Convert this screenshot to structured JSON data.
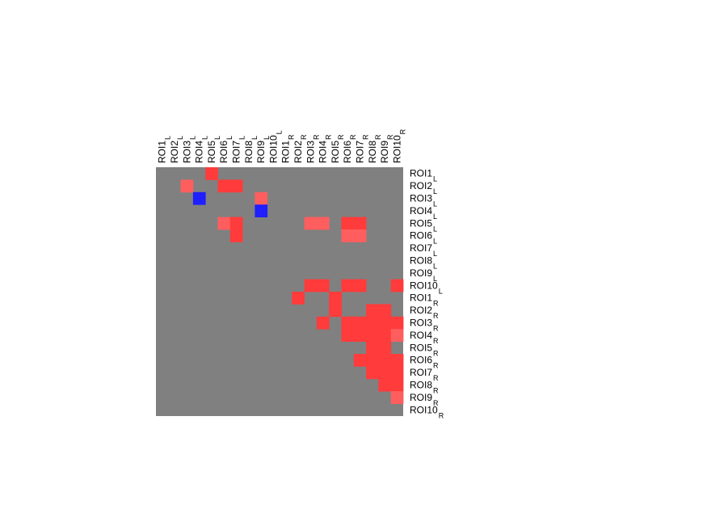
{
  "chart_data": {
    "type": "heatmap",
    "title": "",
    "xlabel": "",
    "ylabel": "",
    "columns": [
      {
        "base": "ROI1",
        "sub": "L"
      },
      {
        "base": "ROI2",
        "sub": "L"
      },
      {
        "base": "ROI3",
        "sub": "L"
      },
      {
        "base": "ROI4",
        "sub": "L"
      },
      {
        "base": "ROI5",
        "sub": "L"
      },
      {
        "base": "ROI6",
        "sub": "L"
      },
      {
        "base": "ROI7",
        "sub": "L"
      },
      {
        "base": "ROI8",
        "sub": "L"
      },
      {
        "base": "ROI9",
        "sub": "L"
      },
      {
        "base": "ROI10",
        "sub": "L"
      },
      {
        "base": "ROI1",
        "sub": "R"
      },
      {
        "base": "ROI2",
        "sub": "R"
      },
      {
        "base": "ROI3",
        "sub": "R"
      },
      {
        "base": "ROI4",
        "sub": "R"
      },
      {
        "base": "ROI5",
        "sub": "R"
      },
      {
        "base": "ROI6",
        "sub": "R"
      },
      {
        "base": "ROI7",
        "sub": "R"
      },
      {
        "base": "ROI8",
        "sub": "R"
      },
      {
        "base": "ROI9",
        "sub": "R"
      },
      {
        "base": "ROI10",
        "sub": "R"
      }
    ],
    "rows": [
      {
        "base": "ROI1",
        "sub": "L"
      },
      {
        "base": "ROI2",
        "sub": "L"
      },
      {
        "base": "ROI3",
        "sub": "L"
      },
      {
        "base": "ROI4",
        "sub": "L"
      },
      {
        "base": "ROI5",
        "sub": "L"
      },
      {
        "base": "ROI6",
        "sub": "L"
      },
      {
        "base": "ROI7",
        "sub": "L"
      },
      {
        "base": "ROI8",
        "sub": "L"
      },
      {
        "base": "ROI9",
        "sub": "L"
      },
      {
        "base": "ROI10",
        "sub": "L"
      },
      {
        "base": "ROI1",
        "sub": "R"
      },
      {
        "base": "ROI2",
        "sub": "R"
      },
      {
        "base": "ROI3",
        "sub": "R"
      },
      {
        "base": "ROI4",
        "sub": "R"
      },
      {
        "base": "ROI5",
        "sub": "R"
      },
      {
        "base": "ROI6",
        "sub": "R"
      },
      {
        "base": "ROI7",
        "sub": "R"
      },
      {
        "base": "ROI8",
        "sub": "R"
      },
      {
        "base": "ROI9",
        "sub": "R"
      },
      {
        "base": "ROI10",
        "sub": "R"
      }
    ],
    "values": [
      [
        0,
        0,
        0,
        0,
        1,
        0,
        0,
        0,
        0,
        0,
        0,
        0,
        0,
        0,
        0,
        0,
        0,
        0,
        0,
        0
      ],
      [
        0,
        0,
        0.7,
        0,
        0,
        1,
        1,
        0,
        0,
        0,
        0,
        0,
        0,
        0,
        0,
        0,
        0,
        0,
        0,
        0
      ],
      [
        0,
        0,
        0,
        -1,
        0,
        0,
        0,
        0,
        0.7,
        0,
        0,
        0,
        0,
        0,
        0,
        0,
        0,
        0,
        0,
        0
      ],
      [
        0,
        0,
        0,
        0,
        0,
        0,
        0,
        0,
        -1,
        0,
        0,
        0,
        0,
        0,
        0,
        0,
        0,
        0,
        0,
        0
      ],
      [
        0,
        0,
        0,
        0,
        0,
        0.7,
        1,
        0,
        0,
        0,
        0,
        0,
        0.7,
        0.7,
        0,
        1,
        1,
        0,
        0,
        0
      ],
      [
        0,
        0,
        0,
        0,
        0,
        0,
        1,
        0,
        0,
        0,
        0,
        0,
        0,
        0,
        0,
        0.7,
        0.7,
        0,
        0,
        0
      ],
      [
        0,
        0,
        0,
        0,
        0,
        0,
        0,
        0,
        0,
        0,
        0,
        0,
        0,
        0,
        0,
        0,
        0,
        0,
        0,
        0
      ],
      [
        0,
        0,
        0,
        0,
        0,
        0,
        0,
        0,
        0,
        0,
        0,
        0,
        0,
        0,
        0,
        0,
        0,
        0,
        0,
        0
      ],
      [
        0,
        0,
        0,
        0,
        0,
        0,
        0,
        0,
        0,
        0,
        0,
        0,
        0,
        0,
        0,
        0,
        0,
        0,
        0,
        0
      ],
      [
        0,
        0,
        0,
        0,
        0,
        0,
        0,
        0,
        0,
        0,
        0,
        0,
        1,
        1,
        0,
        1,
        1,
        0,
        0,
        1
      ],
      [
        0,
        0,
        0,
        0,
        0,
        0,
        0,
        0,
        0,
        0,
        0,
        1,
        0,
        0,
        1,
        0,
        0,
        0,
        0,
        0
      ],
      [
        0,
        0,
        0,
        0,
        0,
        0,
        0,
        0,
        0,
        0,
        0,
        0,
        0,
        0,
        1,
        0,
        0,
        1,
        1,
        0
      ],
      [
        0,
        0,
        0,
        0,
        0,
        0,
        0,
        0,
        0,
        0,
        0,
        0,
        0,
        1,
        0,
        1,
        1,
        1,
        1,
        1
      ],
      [
        0,
        0,
        0,
        0,
        0,
        0,
        0,
        0,
        0,
        0,
        0,
        0,
        0,
        0,
        0,
        1,
        1,
        1,
        1,
        0.7
      ],
      [
        0,
        0,
        0,
        0,
        0,
        0,
        0,
        0,
        0,
        0,
        0,
        0,
        0,
        0,
        0,
        0,
        0,
        1,
        1,
        0
      ],
      [
        0,
        0,
        0,
        0,
        0,
        0,
        0,
        0,
        0,
        0,
        0,
        0,
        0,
        0,
        0,
        0,
        1,
        1,
        1,
        1
      ],
      [
        0,
        0,
        0,
        0,
        0,
        0,
        0,
        0,
        0,
        0,
        0,
        0,
        0,
        0,
        0,
        0,
        0,
        1,
        1,
        1
      ],
      [
        0,
        0,
        0,
        0,
        0,
        0,
        0,
        0,
        0,
        0,
        0,
        0,
        0,
        0,
        0,
        0,
        0,
        0,
        1,
        1
      ],
      [
        0,
        0,
        0,
        0,
        0,
        0,
        0,
        0,
        0,
        0,
        0,
        0,
        0,
        0,
        0,
        0,
        0,
        0,
        0,
        0.7
      ],
      [
        0,
        0,
        0,
        0,
        0,
        0,
        0,
        0,
        0,
        0,
        0,
        0,
        0,
        0,
        0,
        0,
        0,
        0,
        0,
        0
      ]
    ],
    "color_scale": {
      "neutral": "#808080",
      "positive_strong": "#ff3b3b",
      "positive_weak": "#ff5e5e",
      "negative": "#1f1fff"
    },
    "grid": false,
    "legend": "none"
  }
}
